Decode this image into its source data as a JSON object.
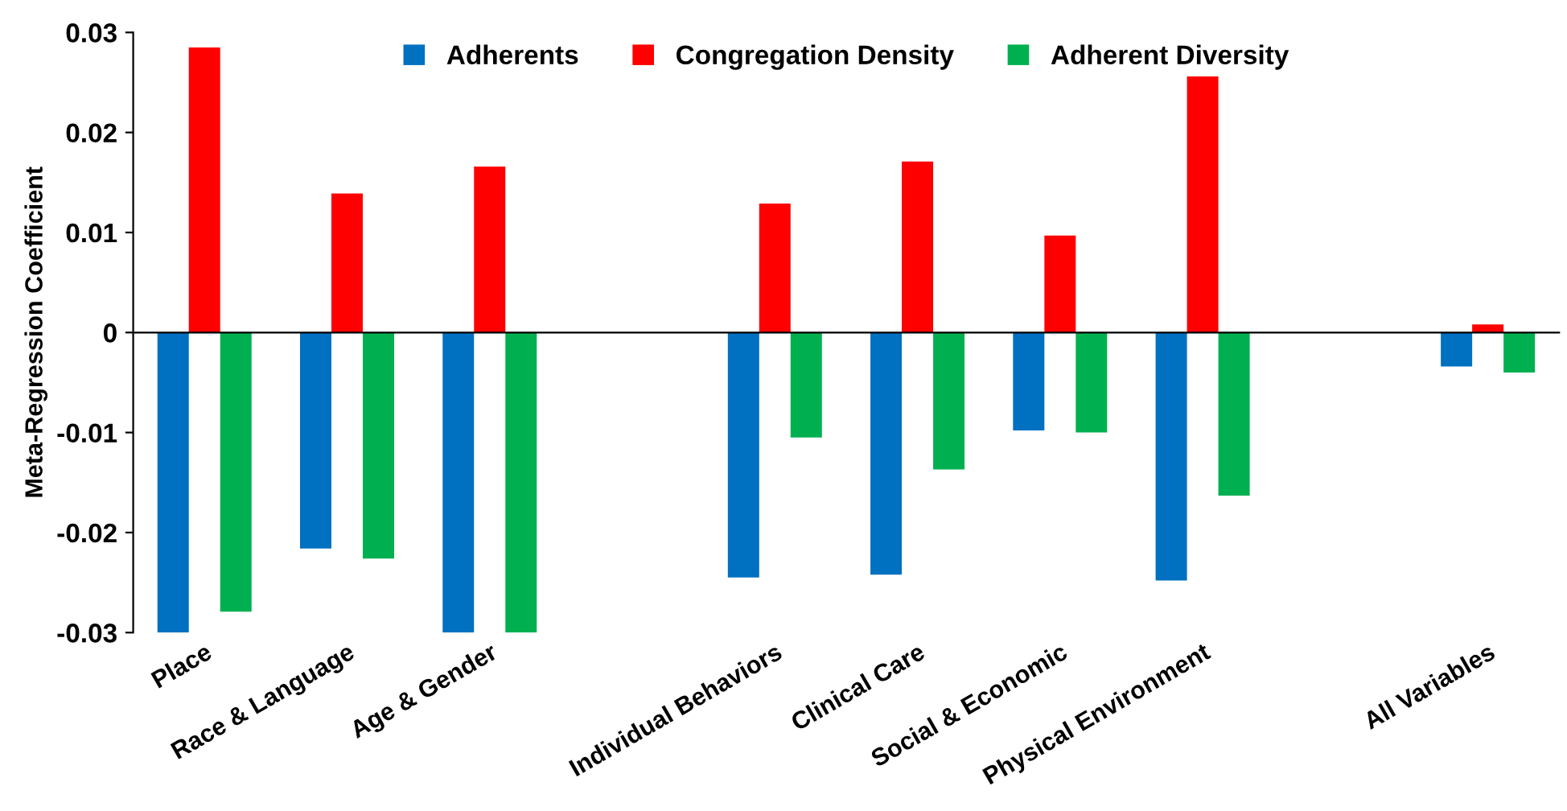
{
  "chart_data": {
    "type": "bar",
    "ylabel": "Meta-Regression Coefficient",
    "categories": [
      "Place",
      "Race & Language",
      "Age & Gender",
      null,
      "Individual Behaviors",
      "Clinical Care",
      "Social & Economic",
      "Physical Environment",
      null,
      "All Variables"
    ],
    "series": [
      {
        "name": "Adherents",
        "color": "#0070c0",
        "values": [
          -0.03,
          -0.0216,
          -0.03,
          null,
          -0.0245,
          -0.0242,
          -0.0098,
          -0.0248,
          null,
          -0.0034
        ]
      },
      {
        "name": "Congregation Density",
        "color": "#ff0000",
        "values": [
          0.0285,
          0.0139,
          0.0166,
          null,
          0.0129,
          0.0171,
          0.0097,
          0.0256,
          null,
          0.0008
        ]
      },
      {
        "name": "Adherent Diversity",
        "color": "#00b050",
        "values": [
          -0.0279,
          -0.0226,
          -0.03,
          null,
          -0.0105,
          -0.0137,
          -0.01,
          -0.0163,
          null,
          -0.004
        ]
      }
    ],
    "ylim": [
      -0.03,
      0.03
    ],
    "yticks": [
      {
        "value": -0.03,
        "label": "-0.03"
      },
      {
        "value": -0.02,
        "label": "-0.02"
      },
      {
        "value": -0.01,
        "label": "-0.01"
      },
      0,
      0.01,
      0.02,
      0.03
    ],
    "legend": "top"
  }
}
